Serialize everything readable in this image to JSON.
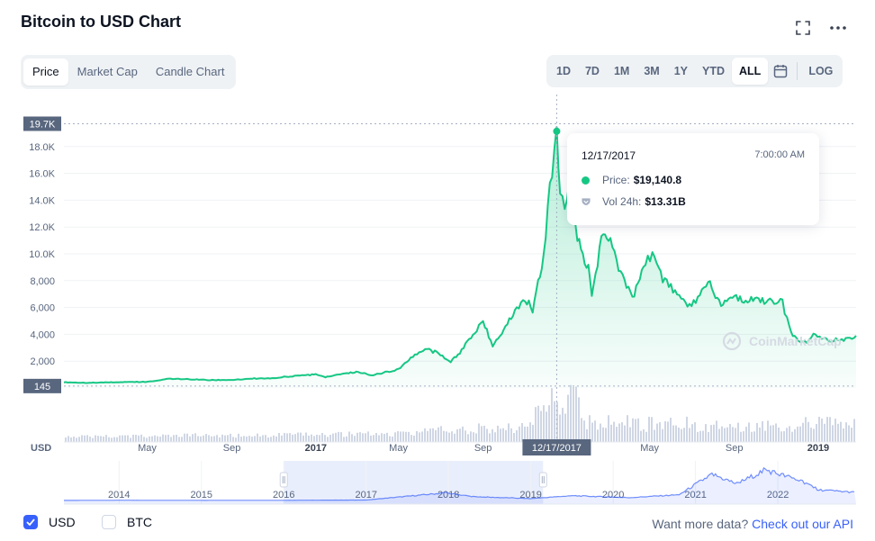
{
  "header": {
    "title": "Bitcoin to USD Chart"
  },
  "tabs": [
    {
      "label": "Price",
      "active": true
    },
    {
      "label": "Market Cap",
      "active": false
    },
    {
      "label": "Candle Chart",
      "active": false
    }
  ],
  "ranges": [
    {
      "label": "1D",
      "active": false
    },
    {
      "label": "7D",
      "active": false
    },
    {
      "label": "1M",
      "active": false
    },
    {
      "label": "3M",
      "active": false
    },
    {
      "label": "1Y",
      "active": false
    },
    {
      "label": "YTD",
      "active": false
    },
    {
      "label": "ALL",
      "active": true
    }
  ],
  "log_label": "LOG",
  "tooltip": {
    "date": "12/17/2017",
    "time": "7:00:00 AM",
    "price_label": "Price:",
    "price_value": "$19,140.8",
    "vol_label": "Vol 24h:",
    "vol_value": "$13.31B"
  },
  "footer": {
    "usd_label": "USD",
    "btc_label": "BTC",
    "usd_checked": true,
    "btc_checked": false,
    "api_text": "Want more data?",
    "api_link": "Check out our API"
  },
  "watermark": "CoinMarketCap",
  "colors": {
    "line": "#16c784",
    "accent": "#3861fb",
    "volume": "#cfd6e4"
  },
  "chart_data": {
    "type": "line",
    "ylabel": "USD",
    "ylim": [
      0,
      20000
    ],
    "yticks": [
      2000,
      4000,
      6000,
      8000,
      10000,
      12000,
      14000,
      16000,
      18000
    ],
    "ytick_labels": [
      "2,000",
      "4,000",
      "6,000",
      "8,000",
      "10.0K",
      "12.0K",
      "14.0K",
      "16.0K",
      "18.0K"
    ],
    "min_marker": {
      "value": 145,
      "label": "145"
    },
    "max_marker": {
      "value": 19700,
      "label": "19.7K"
    },
    "xticks": [
      {
        "date": "2016-05-01",
        "label": "May",
        "bold": false
      },
      {
        "date": "2016-09-01",
        "label": "Sep",
        "bold": false
      },
      {
        "date": "2017-01-01",
        "label": "2017",
        "bold": true
      },
      {
        "date": "2017-05-01",
        "label": "May",
        "bold": false
      },
      {
        "date": "2017-09-01",
        "label": "Sep",
        "bold": false
      },
      {
        "date": "2018-05-01",
        "label": "May",
        "bold": false
      },
      {
        "date": "2018-09-01",
        "label": "Sep",
        "bold": false
      },
      {
        "date": "2019-01-01",
        "label": "2019",
        "bold": true
      }
    ],
    "crosshair": {
      "date": "2017-12-17",
      "label": "12/17/2017",
      "value": 19140.8
    },
    "series": [
      {
        "values": [
          {
            "date": "2016-01-01",
            "value": 430
          },
          {
            "date": "2016-02-01",
            "value": 380
          },
          {
            "date": "2016-03-01",
            "value": 415
          },
          {
            "date": "2016-04-01",
            "value": 440
          },
          {
            "date": "2016-05-01",
            "value": 455
          },
          {
            "date": "2016-06-01",
            "value": 680
          },
          {
            "date": "2016-07-01",
            "value": 650
          },
          {
            "date": "2016-08-01",
            "value": 580
          },
          {
            "date": "2016-09-01",
            "value": 610
          },
          {
            "date": "2016-10-01",
            "value": 700
          },
          {
            "date": "2016-11-01",
            "value": 740
          },
          {
            "date": "2016-12-01",
            "value": 900
          },
          {
            "date": "2017-01-01",
            "value": 1000
          },
          {
            "date": "2017-01-15",
            "value": 820
          },
          {
            "date": "2017-02-01",
            "value": 1000
          },
          {
            "date": "2017-03-01",
            "value": 1200
          },
          {
            "date": "2017-03-25",
            "value": 950
          },
          {
            "date": "2017-04-15",
            "value": 1200
          },
          {
            "date": "2017-05-01",
            "value": 1400
          },
          {
            "date": "2017-05-25",
            "value": 2500
          },
          {
            "date": "2017-06-12",
            "value": 2900
          },
          {
            "date": "2017-07-01",
            "value": 2500
          },
          {
            "date": "2017-07-16",
            "value": 1950
          },
          {
            "date": "2017-08-01",
            "value": 2800
          },
          {
            "date": "2017-08-20",
            "value": 4200
          },
          {
            "date": "2017-09-01",
            "value": 4900
          },
          {
            "date": "2017-09-15",
            "value": 3200
          },
          {
            "date": "2017-10-01",
            "value": 4400
          },
          {
            "date": "2017-10-20",
            "value": 6000
          },
          {
            "date": "2017-11-01",
            "value": 6700
          },
          {
            "date": "2017-11-12",
            "value": 5800
          },
          {
            "date": "2017-11-28",
            "value": 10000
          },
          {
            "date": "2017-12-07",
            "value": 15000
          },
          {
            "date": "2017-12-17",
            "value": 19140
          },
          {
            "date": "2017-12-22",
            "value": 14000
          },
          {
            "date": "2018-01-01",
            "value": 13500
          },
          {
            "date": "2018-01-06",
            "value": 17000
          },
          {
            "date": "2018-01-16",
            "value": 11000
          },
          {
            "date": "2018-02-01",
            "value": 9000
          },
          {
            "date": "2018-02-06",
            "value": 7000
          },
          {
            "date": "2018-02-20",
            "value": 11000
          },
          {
            "date": "2018-03-05",
            "value": 11500
          },
          {
            "date": "2018-03-20",
            "value": 8500
          },
          {
            "date": "2018-04-06",
            "value": 6600
          },
          {
            "date": "2018-04-25",
            "value": 9300
          },
          {
            "date": "2018-05-05",
            "value": 9800
          },
          {
            "date": "2018-05-20",
            "value": 8200
          },
          {
            "date": "2018-06-01",
            "value": 7500
          },
          {
            "date": "2018-06-25",
            "value": 6100
          },
          {
            "date": "2018-07-10",
            "value": 6600
          },
          {
            "date": "2018-07-25",
            "value": 8200
          },
          {
            "date": "2018-08-10",
            "value": 6300
          },
          {
            "date": "2018-09-01",
            "value": 7000
          },
          {
            "date": "2018-09-15",
            "value": 6500
          },
          {
            "date": "2018-10-01",
            "value": 6600
          },
          {
            "date": "2018-10-20",
            "value": 6450
          },
          {
            "date": "2018-11-10",
            "value": 6400
          },
          {
            "date": "2018-11-20",
            "value": 4500
          },
          {
            "date": "2018-11-25",
            "value": 3800
          },
          {
            "date": "2018-12-15",
            "value": 3300
          },
          {
            "date": "2018-12-25",
            "value": 3900
          },
          {
            "date": "2019-01-15",
            "value": 3600
          },
          {
            "date": "2019-02-10",
            "value": 3600
          },
          {
            "date": "2019-02-25",
            "value": 3900
          }
        ]
      }
    ],
    "navigator": {
      "xticks": [
        "2014",
        "2015",
        "2016",
        "2017",
        "2018",
        "2019",
        "2020",
        "2021",
        "2022"
      ],
      "window": [
        "2016-01-01",
        "2019-02-25"
      ]
    }
  }
}
